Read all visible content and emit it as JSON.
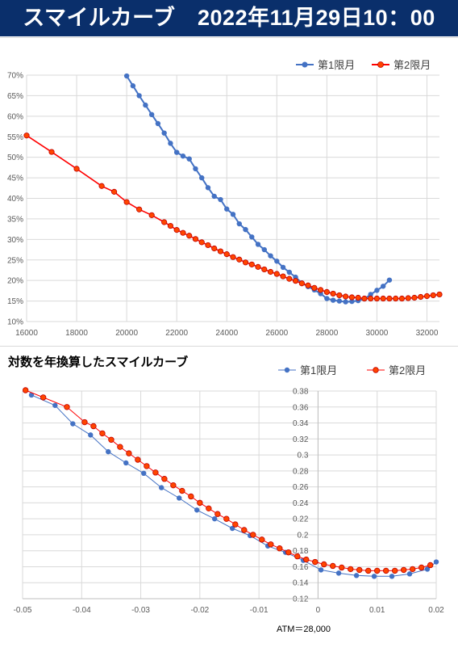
{
  "header": {
    "title": "スマイルカーブ　2022年11月29日10：00"
  },
  "colors": {
    "series1": "#4472c4",
    "series2": "#ff0000",
    "marker2_fill": "#ff4500",
    "header_bg": "#0a2f6b"
  },
  "chart_data": [
    {
      "type": "line",
      "title": "",
      "x_ticks": [
        "16000",
        "18000",
        "20000",
        "22000",
        "24000",
        "26000",
        "28000",
        "30000",
        "32000"
      ],
      "y_ticks": [
        "10%",
        "15%",
        "20%",
        "25%",
        "30%",
        "35%",
        "40%",
        "45%",
        "50%",
        "55%",
        "60%",
        "65%",
        "70%"
      ],
      "xlim": [
        16000,
        32500
      ],
      "ylim": [
        10,
        70
      ],
      "grid": true,
      "legend_position": "top-right",
      "series": [
        {
          "name": "第1限月",
          "color": "#4472c4",
          "x": [
            20000,
            20250,
            20500,
            20750,
            21000,
            21250,
            21500,
            21750,
            22000,
            22250,
            22500,
            22750,
            23000,
            23250,
            23500,
            23750,
            24000,
            24250,
            24500,
            24750,
            25000,
            25250,
            25500,
            25750,
            26000,
            26250,
            26500,
            26750,
            27000,
            27250,
            27500,
            27750,
            28000,
            28250,
            28500,
            28750,
            29000,
            29250,
            29500,
            29750,
            30000,
            30250,
            30500
          ],
          "y": [
            69.8,
            67.4,
            65.0,
            62.7,
            60.4,
            58.2,
            55.9,
            53.4,
            51.2,
            50.3,
            49.6,
            47.2,
            45.0,
            42.6,
            40.5,
            39.7,
            37.4,
            36.1,
            33.8,
            32.4,
            30.6,
            28.8,
            27.5,
            26.0,
            24.7,
            23.2,
            22.0,
            20.8,
            19.4,
            18.5,
            17.7,
            16.8,
            15.6,
            15.2,
            15.0,
            14.8,
            14.9,
            15.1,
            15.5,
            16.6,
            17.6,
            18.6,
            20.1
          ]
        },
        {
          "name": "第2限月",
          "color": "#ff0000",
          "x": [
            16000,
            17000,
            18000,
            19000,
            19500,
            20000,
            20500,
            21000,
            21500,
            21750,
            22000,
            22250,
            22500,
            22750,
            23000,
            23250,
            23500,
            23750,
            24000,
            24250,
            24500,
            24750,
            25000,
            25250,
            25500,
            25750,
            26000,
            26250,
            26500,
            26750,
            27000,
            27250,
            27500,
            27750,
            28000,
            28250,
            28500,
            28750,
            29000,
            29250,
            29500,
            29750,
            30000,
            30250,
            30500,
            30750,
            31000,
            31250,
            31500,
            31750,
            32000,
            32250,
            32500
          ],
          "y": [
            55.3,
            51.3,
            47.2,
            43.0,
            41.6,
            39.1,
            37.3,
            35.9,
            34.2,
            33.3,
            32.3,
            31.6,
            30.9,
            30.1,
            29.3,
            28.6,
            27.8,
            27.1,
            26.4,
            25.7,
            25.1,
            24.4,
            23.9,
            23.3,
            22.7,
            22.1,
            21.6,
            21.0,
            20.4,
            19.9,
            19.3,
            18.8,
            18.2,
            17.7,
            17.2,
            16.8,
            16.4,
            16.1,
            15.9,
            15.8,
            15.6,
            15.6,
            15.6,
            15.6,
            15.6,
            15.6,
            15.6,
            15.7,
            15.8,
            16.0,
            16.2,
            16.4,
            16.6
          ]
        }
      ]
    },
    {
      "type": "line",
      "title": "対数を年換算したスマイルカーブ",
      "x_ticks": [
        "-0.05",
        "-0.04",
        "-0.03",
        "-0.02",
        "-0.01",
        "0",
        "0.01",
        "0.02"
      ],
      "y_ticks": [
        "0.12",
        "0.14",
        "0.16",
        "0.18",
        "0.2",
        "0.22",
        "0.24",
        "0.26",
        "0.28",
        "0.3",
        "0.32",
        "0.34",
        "0.36",
        "0.38"
      ],
      "xlim": [
        -0.05,
        0.02
      ],
      "ylim": [
        0.12,
        0.38
      ],
      "grid": true,
      "legend_position": "top-right",
      "annotation": "ATM＝28,000",
      "series": [
        {
          "name": "第1限月",
          "color": "#4472c4",
          "x": [
            -0.0485,
            -0.0445,
            -0.0415,
            -0.0385,
            -0.0355,
            -0.0325,
            -0.0295,
            -0.0265,
            -0.0235,
            -0.0205,
            -0.0175,
            -0.0145,
            -0.0115,
            -0.0085,
            -0.0055,
            -0.0025,
            0.0005,
            0.0035,
            0.0065,
            0.0095,
            0.0125,
            0.0155,
            0.0185,
            0.02
          ],
          "y": [
            0.375,
            0.362,
            0.339,
            0.325,
            0.304,
            0.29,
            0.277,
            0.259,
            0.246,
            0.231,
            0.22,
            0.208,
            0.199,
            0.186,
            0.178,
            0.168,
            0.156,
            0.152,
            0.149,
            0.148,
            0.148,
            0.151,
            0.157,
            0.166
          ]
        },
        {
          "name": "第2限月",
          "color": "#ff0000",
          "x": [
            -0.0495,
            -0.0465,
            -0.0425,
            -0.0395,
            -0.038,
            -0.0365,
            -0.035,
            -0.0335,
            -0.032,
            -0.0305,
            -0.029,
            -0.0275,
            -0.026,
            -0.0245,
            -0.023,
            -0.0215,
            -0.02,
            -0.0185,
            -0.017,
            -0.0155,
            -0.014,
            -0.0125,
            -0.011,
            -0.0095,
            -0.008,
            -0.0065,
            -0.005,
            -0.0035,
            -0.002,
            -0.0005,
            0.001,
            0.0025,
            0.004,
            0.0055,
            0.007,
            0.0085,
            0.01,
            0.0115,
            0.013,
            0.0145,
            0.016,
            0.0175,
            0.019
          ],
          "y": [
            0.381,
            0.372,
            0.36,
            0.341,
            0.336,
            0.327,
            0.319,
            0.31,
            0.302,
            0.294,
            0.286,
            0.278,
            0.27,
            0.262,
            0.255,
            0.248,
            0.24,
            0.233,
            0.226,
            0.22,
            0.213,
            0.206,
            0.2,
            0.194,
            0.188,
            0.183,
            0.178,
            0.173,
            0.169,
            0.166,
            0.163,
            0.161,
            0.159,
            0.157,
            0.156,
            0.155,
            0.155,
            0.155,
            0.155,
            0.156,
            0.157,
            0.159,
            0.162
          ]
        }
      ]
    }
  ]
}
